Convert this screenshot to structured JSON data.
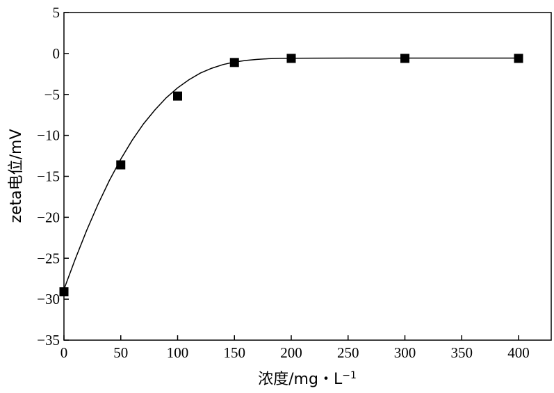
{
  "chart_data": {
    "type": "scatter",
    "title": "",
    "xlabel": "浓度/mg・L",
    "xlabel_sup": "−1",
    "ylabel": "zeta电位/mV",
    "xlim": [
      0,
      430
    ],
    "ylim": [
      -35,
      5
    ],
    "x_ticks": [
      0,
      50,
      100,
      150,
      200,
      250,
      300,
      350,
      400
    ],
    "y_ticks": [
      5,
      0,
      -5,
      -10,
      -15,
      -20,
      -25,
      -30,
      -35
    ],
    "y_tick_labels": [
      "5",
      "0",
      "−5",
      "−10",
      "−15",
      "−20",
      "−25",
      "−30",
      "−35"
    ],
    "grid": false,
    "series": [
      {
        "marker": "square",
        "color": "#000000",
        "x": [
          0,
          50,
          100,
          150,
          200,
          300,
          400
        ],
        "y": [
          -29.1,
          -13.6,
          -5.2,
          -1.1,
          -0.6,
          -0.6,
          -0.6
        ]
      }
    ],
    "fit_curve": {
      "color": "#000000",
      "x": [
        0,
        10,
        20,
        30,
        40,
        50,
        60,
        70,
        80,
        90,
        100,
        110,
        120,
        130,
        140,
        150,
        160,
        170,
        180,
        190,
        200,
        220,
        250,
        300,
        350,
        400
      ],
      "y": [
        -28.8,
        -25.1,
        -21.6,
        -18.4,
        -15.5,
        -12.9,
        -10.6,
        -8.6,
        -6.9,
        -5.4,
        -4.2,
        -3.2,
        -2.4,
        -1.8,
        -1.35,
        -1.05,
        -0.85,
        -0.72,
        -0.64,
        -0.6,
        -0.58,
        -0.57,
        -0.56,
        -0.56,
        -0.56,
        -0.56
      ]
    }
  }
}
